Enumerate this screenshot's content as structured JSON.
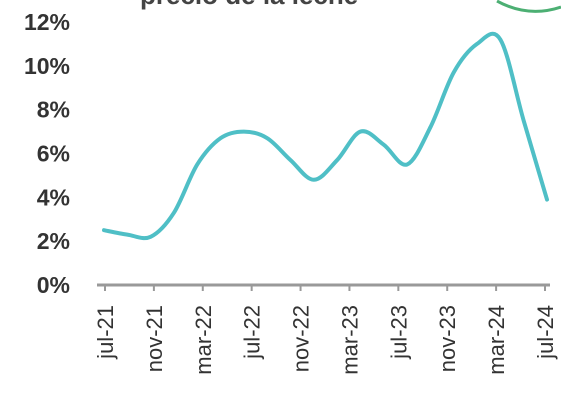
{
  "header": {
    "title_fragment": "precio de la leche"
  },
  "chart_data": {
    "type": "line",
    "title": "",
    "xlabel": "",
    "ylabel": "",
    "ylim": [
      0,
      12
    ],
    "y_ticks": [
      0,
      2,
      4,
      6,
      8,
      10,
      12
    ],
    "y_tick_labels": [
      "0%",
      "2%",
      "4%",
      "6%",
      "8%",
      "10%",
      "12%"
    ],
    "grid": false,
    "legend": "none",
    "x_tick_labels": [
      "jul-21",
      "nov-21",
      "mar-22",
      "jul-22",
      "nov-22",
      "mar-23",
      "jul-23",
      "nov-23",
      "mar-24",
      "jul-24"
    ],
    "series": [
      {
        "color": "#4FBFC6",
        "values": [
          2.5,
          2.3,
          2.2,
          3.3,
          5.5,
          6.7,
          7.0,
          6.7,
          5.7,
          4.8,
          5.7,
          7.0,
          6.4,
          5.5,
          7.2,
          9.7,
          11.0,
          11.2,
          7.5,
          3.9
        ]
      }
    ],
    "colors": {
      "line": "#4FBFC6",
      "axis": "#999999",
      "text": "#333333"
    }
  }
}
